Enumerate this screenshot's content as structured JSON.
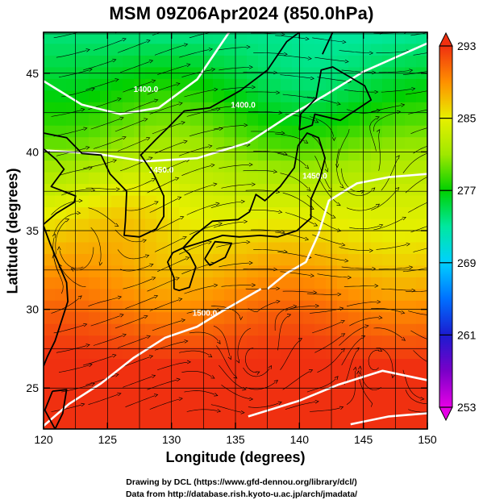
{
  "title": "MSM 09Z06Apr2024 (850.0hPa)",
  "credits": [
    "Drawing by DCL (https://www.gfd-dennou.org/library/dcl/)",
    "Data from http://database.rish.kyoto-u.ac.jp/arch/jmadata/"
  ],
  "chart_data": {
    "type": "heatmap",
    "title": "MSM 09Z06Apr2024 (850.0hPa)",
    "xlabel": "Longitude (degrees)",
    "ylabel": "Latitude  (degrees)",
    "xlim": [
      120,
      150
    ],
    "ylim": [
      22.4,
      47.6
    ],
    "xticks": [
      120,
      125,
      130,
      135,
      140,
      145,
      150
    ],
    "yticks": [
      25,
      30,
      35,
      40,
      45
    ],
    "grid": true,
    "colorbar": {
      "ticks": [
        253,
        261,
        269,
        277,
        285,
        293
      ],
      "range": [
        253,
        293
      ],
      "colors": [
        {
          "value": 253,
          "color": "#e600e6"
        },
        {
          "value": 257,
          "color": "#7a00c8"
        },
        {
          "value": 261,
          "color": "#1b1bd0"
        },
        {
          "value": 265,
          "color": "#0070ff"
        },
        {
          "value": 269,
          "color": "#00d0ff"
        },
        {
          "value": 273,
          "color": "#00e8a0"
        },
        {
          "value": 277,
          "color": "#00d000"
        },
        {
          "value": 281,
          "color": "#a0e800"
        },
        {
          "value": 285,
          "color": "#e8f000"
        },
        {
          "value": 289,
          "color": "#ff9000"
        },
        {
          "value": 293,
          "color": "#f03010"
        }
      ]
    },
    "contour_labels": [
      "1400.0",
      "1400.0",
      "1450.0",
      "1450.0",
      "1500.0"
    ]
  }
}
